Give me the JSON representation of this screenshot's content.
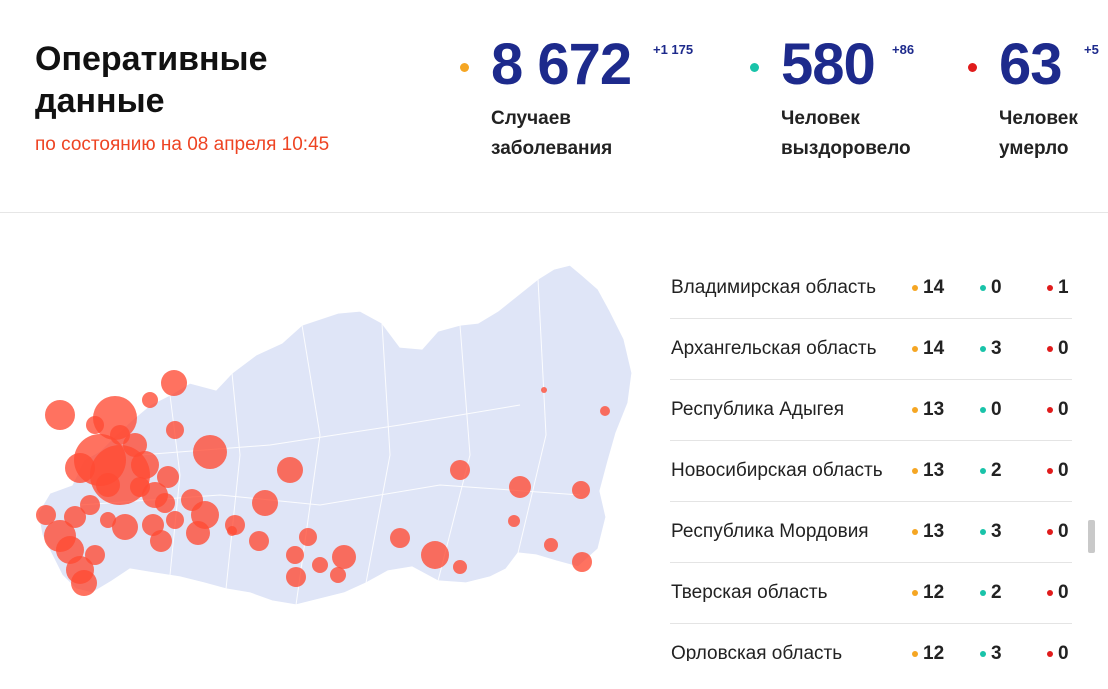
{
  "header": {
    "title": "Оперативные данные",
    "subtitle": "по состоянию на 08 апреля 10:45"
  },
  "stats": [
    {
      "value": "8 672",
      "delta": "+1 175",
      "label_line1": "Случаев",
      "label_line2": "заболевания",
      "color": "#f5a623"
    },
    {
      "value": "580",
      "delta": "+86",
      "label_line1": "Человек",
      "label_line2": "выздоровело",
      "color": "#19c3a9"
    },
    {
      "value": "63",
      "delta": "+5",
      "label_line1": "Человек",
      "label_line2": "умерло",
      "color": "#e01b1b"
    }
  ],
  "colors": {
    "map_fill": "#dfe5f7",
    "bubble": "#ff4a33",
    "accent_title": "#1d2a8c",
    "subtitle": "#ee4423"
  },
  "regions": [
    {
      "name": "Владимирская область",
      "cases": "14",
      "recovered": "0",
      "deaths": "1"
    },
    {
      "name": "Архангельская область",
      "cases": "14",
      "recovered": "3",
      "deaths": "0"
    },
    {
      "name": "Республика Адыгея",
      "cases": "13",
      "recovered": "0",
      "deaths": "0"
    },
    {
      "name": "Новосибирская область",
      "cases": "13",
      "recovered": "2",
      "deaths": "0"
    },
    {
      "name": "Республика Мордовия",
      "cases": "13",
      "recovered": "3",
      "deaths": "0"
    },
    {
      "name": "Тверская область",
      "cases": "12",
      "recovered": "2",
      "deaths": "0"
    },
    {
      "name": "Орловская область",
      "cases": "12",
      "recovered": "3",
      "deaths": "0"
    }
  ]
}
